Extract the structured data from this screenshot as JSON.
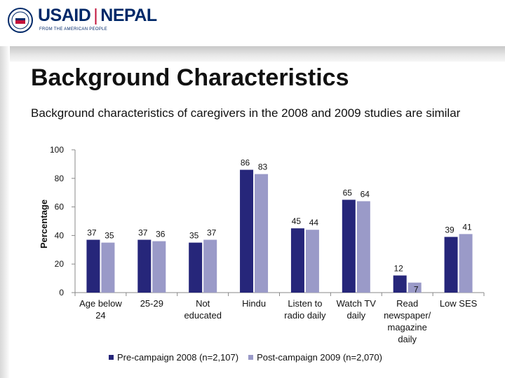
{
  "header": {
    "logo_primary": "USAID",
    "logo_secondary": "NEPAL",
    "logo_tagline": "FROM THE AMERICAN PEOPLE"
  },
  "slide": {
    "title": "Background Characteristics",
    "subtitle": "Background characteristics of caregivers in the 2008 and 2009 studies are similar"
  },
  "colors": {
    "pre": "#26267a",
    "post": "#9a9ac8"
  },
  "chart_data": {
    "type": "bar",
    "ylabel": "Percentage",
    "ylim": [
      0,
      100
    ],
    "yticks": [
      0,
      20,
      40,
      60,
      80,
      100
    ],
    "categories": [
      [
        "Age below",
        "24"
      ],
      [
        "25-29"
      ],
      [
        "Not",
        "educated"
      ],
      [
        "Hindu"
      ],
      [
        "Listen to",
        "radio daily"
      ],
      [
        "Watch TV",
        "daily"
      ],
      [
        "Read",
        "newspaper/",
        "magazine",
        "daily"
      ],
      [
        "Low SES"
      ]
    ],
    "series": [
      {
        "name": "Pre-campaign 2008 (n=2,107)",
        "values": [
          37,
          37,
          35,
          86,
          45,
          65,
          12,
          39
        ]
      },
      {
        "name": "Post-campaign 2009 (n=2,070)",
        "values": [
          35,
          36,
          37,
          83,
          44,
          64,
          7,
          41
        ]
      }
    ],
    "legend_position": "bottom",
    "grid": false
  }
}
